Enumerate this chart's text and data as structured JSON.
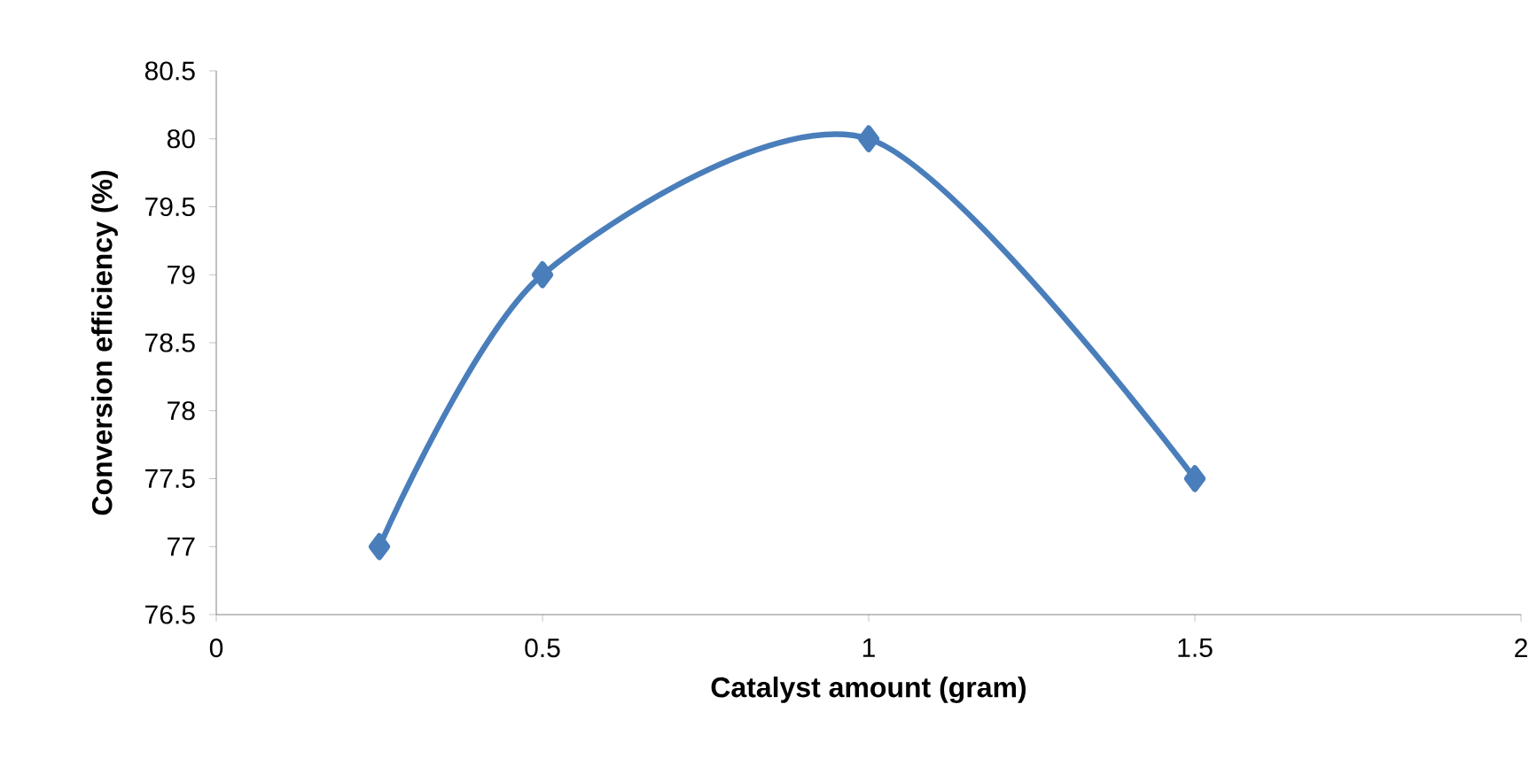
{
  "chart_data": {
    "type": "line",
    "xlabel": "Catalyst amount (gram)",
    "ylabel": "Conversion efficiency (%)",
    "x": [
      0.25,
      0.5,
      1,
      1.5
    ],
    "series": [
      {
        "color": "#4a7ebb",
        "values": [
          77,
          79,
          80,
          77.5
        ]
      }
    ],
    "xlim": [
      0,
      2
    ],
    "xticks": [
      0,
      0.5,
      1,
      1.5,
      2
    ],
    "ylim": [
      76.5,
      80.5
    ],
    "yticks": [
      76.5,
      77,
      77.5,
      78,
      78.5,
      79,
      79.5,
      80,
      80.5
    ],
    "marker": "diamond",
    "line_style": "solid"
  }
}
